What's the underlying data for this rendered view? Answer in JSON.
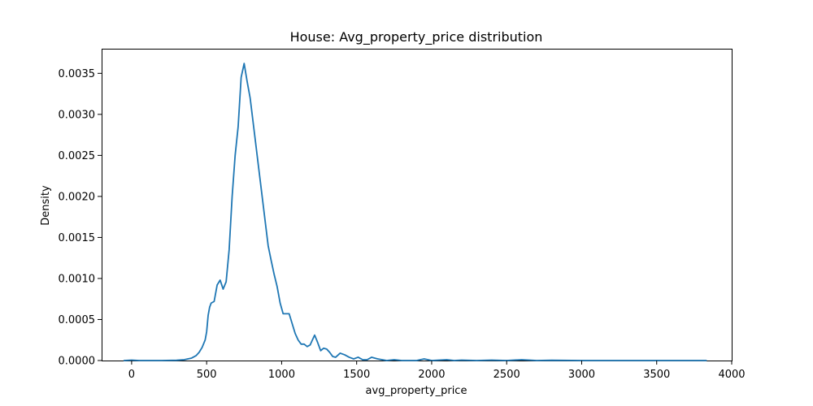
{
  "chart_data": {
    "type": "line",
    "title": "House: Avg_property_price distribution",
    "xlabel": "avg_property_price",
    "ylabel": "Density",
    "xlim": [
      -200,
      4000
    ],
    "ylim": [
      0,
      0.0038
    ],
    "grid": false,
    "xticks": [
      {
        "value": 0,
        "label": "0"
      },
      {
        "value": 500,
        "label": "500"
      },
      {
        "value": 1000,
        "label": "1000"
      },
      {
        "value": 1500,
        "label": "1500"
      },
      {
        "value": 2000,
        "label": "2000"
      },
      {
        "value": 2500,
        "label": "2500"
      },
      {
        "value": 3000,
        "label": "3000"
      },
      {
        "value": 3500,
        "label": "3500"
      },
      {
        "value": 4000,
        "label": "4000"
      }
    ],
    "yticks": [
      {
        "value": 0,
        "label": "0.0000"
      },
      {
        "value": 0.0005,
        "label": "0.0005"
      },
      {
        "value": 0.001,
        "label": "0.0010"
      },
      {
        "value": 0.0015,
        "label": "0.0015"
      },
      {
        "value": 0.002,
        "label": "0.0020"
      },
      {
        "value": 0.0025,
        "label": "0.0025"
      },
      {
        "value": 0.003,
        "label": "0.0030"
      },
      {
        "value": 0.0035,
        "label": "0.0035"
      }
    ],
    "series": [
      {
        "color": "#1f77b4",
        "points": [
          [
            -50,
            0.0
          ],
          [
            0,
            5e-06
          ],
          [
            50,
            0.0
          ],
          [
            200,
            0.0
          ],
          [
            300,
            3e-06
          ],
          [
            350,
            1e-05
          ],
          [
            400,
            3e-05
          ],
          [
            430,
            6e-05
          ],
          [
            450,
            0.0001
          ],
          [
            470,
            0.00016
          ],
          [
            490,
            0.00025
          ],
          [
            500,
            0.00035
          ],
          [
            510,
            0.00055
          ],
          [
            520,
            0.00065
          ],
          [
            530,
            0.0007
          ],
          [
            550,
            0.00072
          ],
          [
            570,
            0.00092
          ],
          [
            590,
            0.00098
          ],
          [
            610,
            0.00087
          ],
          [
            630,
            0.00096
          ],
          [
            650,
            0.00135
          ],
          [
            670,
            0.002
          ],
          [
            690,
            0.0025
          ],
          [
            710,
            0.00285
          ],
          [
            730,
            0.00345
          ],
          [
            750,
            0.00362
          ],
          [
            770,
            0.0034
          ],
          [
            790,
            0.0032
          ],
          [
            810,
            0.0029
          ],
          [
            830,
            0.0026
          ],
          [
            850,
            0.0023
          ],
          [
            870,
            0.002
          ],
          [
            890,
            0.0017
          ],
          [
            910,
            0.0014
          ],
          [
            930,
            0.00122
          ],
          [
            950,
            0.00105
          ],
          [
            970,
            0.0009
          ],
          [
            990,
            0.0007
          ],
          [
            1010,
            0.00057
          ],
          [
            1050,
            0.00057
          ],
          [
            1070,
            0.00045
          ],
          [
            1090,
            0.00033
          ],
          [
            1110,
            0.00025
          ],
          [
            1130,
            0.0002
          ],
          [
            1150,
            0.0002
          ],
          [
            1170,
            0.00017
          ],
          [
            1190,
            0.00019
          ],
          [
            1220,
            0.00031
          ],
          [
            1240,
            0.00022
          ],
          [
            1260,
            0.00012
          ],
          [
            1280,
            0.00015
          ],
          [
            1300,
            0.00014
          ],
          [
            1320,
            0.0001
          ],
          [
            1340,
            5e-05
          ],
          [
            1360,
            4e-05
          ],
          [
            1390,
            9e-05
          ],
          [
            1420,
            7e-05
          ],
          [
            1450,
            4e-05
          ],
          [
            1480,
            2e-05
          ],
          [
            1510,
            4e-05
          ],
          [
            1540,
            1e-05
          ],
          [
            1570,
            1e-05
          ],
          [
            1600,
            4e-05
          ],
          [
            1640,
            2e-05
          ],
          [
            1700,
            0.0
          ],
          [
            1750,
            1e-05
          ],
          [
            1800,
            0.0
          ],
          [
            1900,
            0.0
          ],
          [
            1950,
            2e-05
          ],
          [
            2000,
            0.0
          ],
          [
            2100,
            1e-05
          ],
          [
            2150,
            0.0
          ],
          [
            2200,
            5e-06
          ],
          [
            2300,
            0.0
          ],
          [
            2400,
            5e-06
          ],
          [
            2500,
            0.0
          ],
          [
            2600,
            1e-05
          ],
          [
            2700,
            0.0
          ],
          [
            2800,
            3e-06
          ],
          [
            3000,
            0.0
          ],
          [
            3500,
            0.0
          ],
          [
            3830,
            0.0
          ]
        ]
      }
    ]
  }
}
